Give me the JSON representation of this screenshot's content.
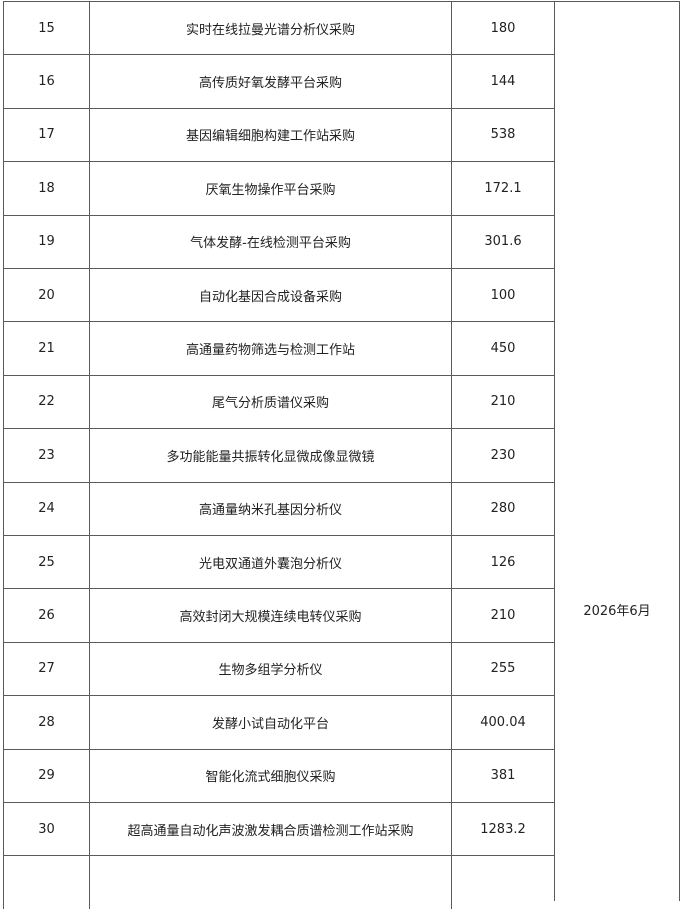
{
  "table": {
    "rows": [
      {
        "no": "15",
        "name": "实时在线拉曼光谱分析仪采购",
        "amount": "180"
      },
      {
        "no": "16",
        "name": "高传质好氧发酵平台采购",
        "amount": "144"
      },
      {
        "no": "17",
        "name": "基因编辑细胞构建工作站采购",
        "amount": "538"
      },
      {
        "no": "18",
        "name": "厌氧生物操作平台采购",
        "amount": "172.1"
      },
      {
        "no": "19",
        "name": "气体发酵-在线检测平台采购",
        "amount": "301.6"
      },
      {
        "no": "20",
        "name": "自动化基因合成设备采购",
        "amount": "100"
      },
      {
        "no": "21",
        "name": "高通量药物筛选与检测工作站",
        "amount": "450"
      },
      {
        "no": "22",
        "name": "尾气分析质谱仪采购",
        "amount": "210"
      },
      {
        "no": "23",
        "name": "多功能能量共振转化显微成像显微镜",
        "amount": "230"
      },
      {
        "no": "24",
        "name": "高通量纳米孔基因分析仪",
        "amount": "280"
      },
      {
        "no": "25",
        "name": "光电双通道外囊泡分析仪",
        "amount": "126"
      },
      {
        "no": "26",
        "name": "高效封闭大规模连续电转仪采购",
        "amount": "210"
      },
      {
        "no": "27",
        "name": "生物多组学分析仪",
        "amount": "255"
      },
      {
        "no": "28",
        "name": "发酵小试自动化平台",
        "amount": "400.04"
      },
      {
        "no": "29",
        "name": "智能化流式细胞仪采购",
        "amount": "381"
      },
      {
        "no": "30",
        "name": "超高通量自动化声波激发耦合质谱检测工作站采购",
        "amount": "1283.2"
      },
      {
        "no": "",
        "name": "",
        "amount": ""
      }
    ],
    "date": "2026年6月"
  }
}
